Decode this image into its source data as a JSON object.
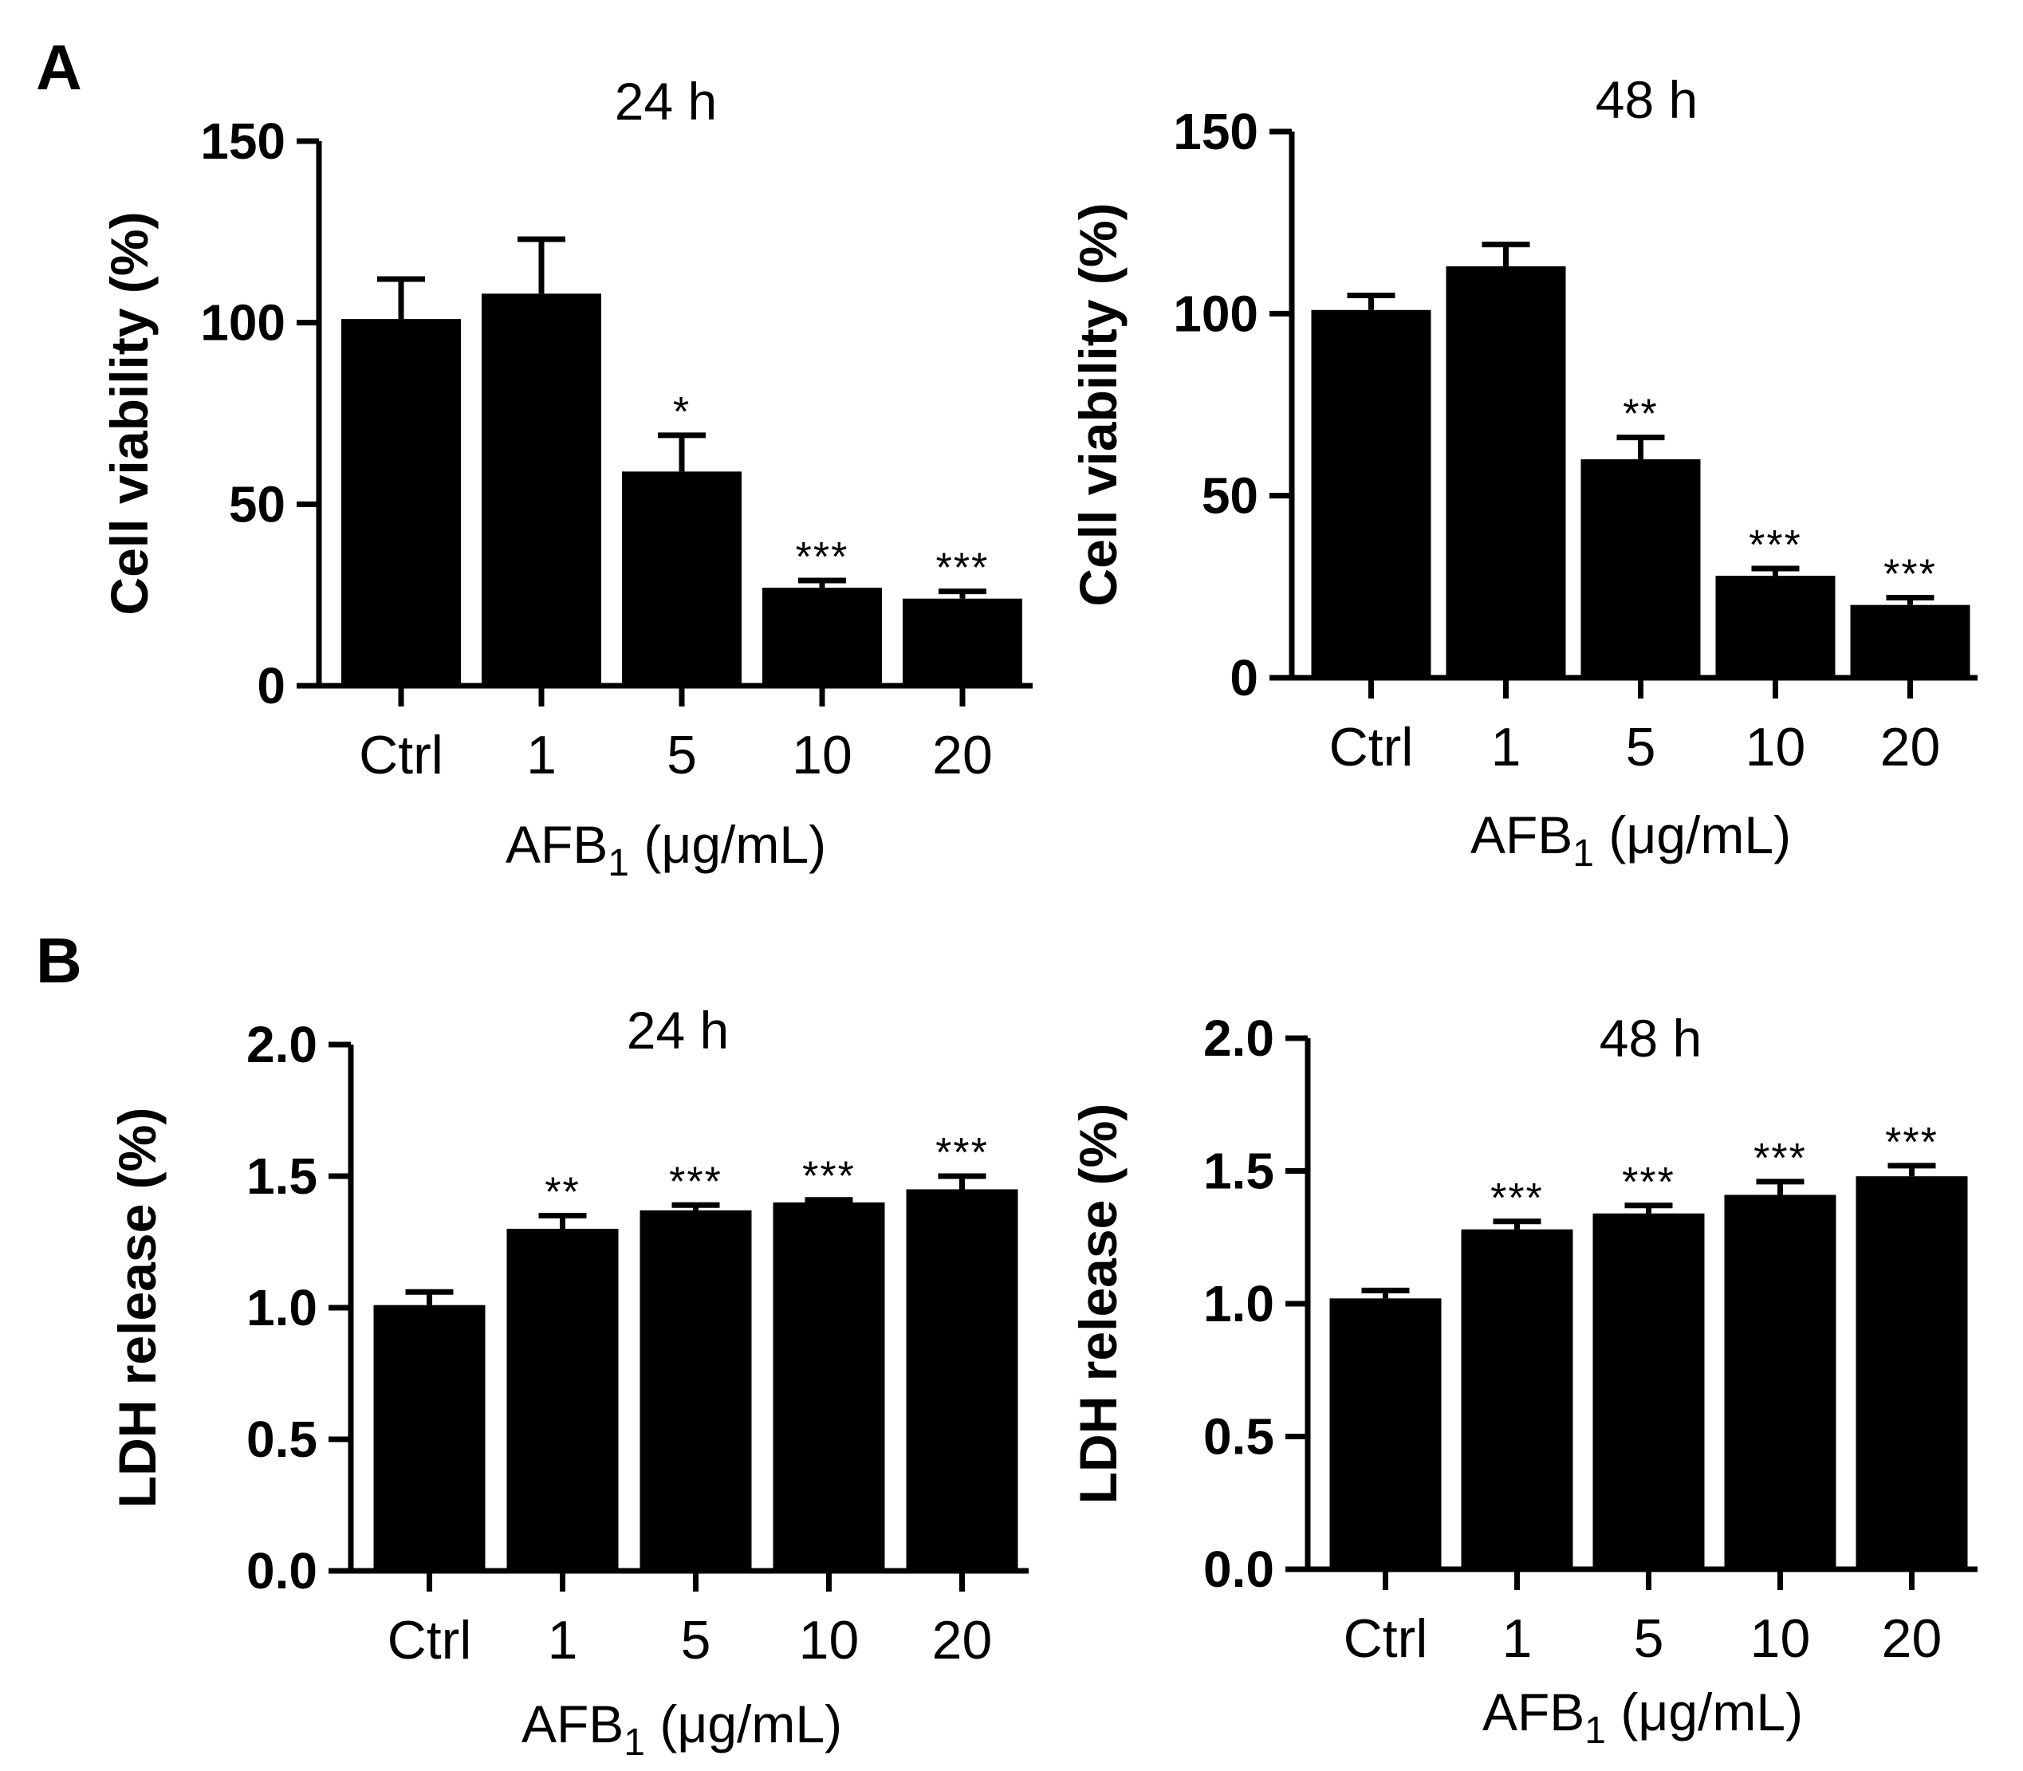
{
  "panels": [
    {
      "letter": "A"
    },
    {
      "letter": "B"
    }
  ],
  "chart_data": [
    {
      "type": "bar",
      "panel": "A",
      "title": "24 h",
      "ylabel": "Cell viability (%)",
      "xlabel": "AFB",
      "xlabel_sub": "1",
      "xlabel_units": "(μg/mL)",
      "categories": [
        "Ctrl",
        "1",
        "5",
        "10",
        "20"
      ],
      "values": [
        101,
        108,
        59,
        27,
        24
      ],
      "errors": [
        11,
        15,
        10,
        2,
        2
      ],
      "significance": [
        "",
        "",
        "*",
        "***",
        "***"
      ],
      "ylim": [
        0,
        150
      ],
      "yticks": [
        "0",
        "50",
        "100",
        "150"
      ],
      "ytick_values": [
        0,
        50,
        100,
        150
      ],
      "bar_color": "#000000"
    },
    {
      "type": "bar",
      "panel": "A",
      "title": "48 h",
      "ylabel": "Cell viability (%)",
      "xlabel": "AFB",
      "xlabel_sub": "1",
      "xlabel_units": "(μg/mL)",
      "categories": [
        "Ctrl",
        "1",
        "5",
        "10",
        "20"
      ],
      "values": [
        101,
        113,
        60,
        28,
        20
      ],
      "errors": [
        4,
        6,
        6,
        2,
        2
      ],
      "significance": [
        "",
        "",
        "**",
        "***",
        "***"
      ],
      "ylim": [
        0,
        150
      ],
      "yticks": [
        "0",
        "50",
        "100",
        "150"
      ],
      "ytick_values": [
        0,
        50,
        100,
        150
      ],
      "bar_color": "#000000"
    },
    {
      "type": "bar",
      "panel": "B",
      "title": "24 h",
      "ylabel": "LDH release (%)",
      "xlabel": "AFB",
      "xlabel_sub": "1",
      "xlabel_units": "(μg/mL)",
      "categories": [
        "Ctrl",
        "1",
        "5",
        "10",
        "20"
      ],
      "values": [
        1.01,
        1.3,
        1.37,
        1.4,
        1.45
      ],
      "errors": [
        0.05,
        0.05,
        0.02,
        0.01,
        0.05
      ],
      "significance": [
        "",
        "**",
        "***",
        "***",
        "***"
      ],
      "ylim": [
        0,
        2.0
      ],
      "yticks": [
        "0.0",
        "0.5",
        "1.0",
        "1.5",
        "2.0"
      ],
      "ytick_values": [
        0,
        0.5,
        1.0,
        1.5,
        2.0
      ],
      "bar_color": "#000000"
    },
    {
      "type": "bar",
      "panel": "B",
      "title": "48 h",
      "ylabel": "LDH release (%)",
      "xlabel": "AFB",
      "xlabel_sub": "1",
      "xlabel_units": "(μg/mL)",
      "categories": [
        "Ctrl",
        "1",
        "5",
        "10",
        "20"
      ],
      "values": [
        1.02,
        1.28,
        1.34,
        1.41,
        1.48
      ],
      "errors": [
        0.03,
        0.03,
        0.03,
        0.05,
        0.04
      ],
      "significance": [
        "",
        "***",
        "***",
        "***",
        "***"
      ],
      "ylim": [
        0,
        2.0
      ],
      "yticks": [
        "0.0",
        "0.5",
        "1.0",
        "1.5",
        "2.0"
      ],
      "ytick_values": [
        0,
        0.5,
        1.0,
        1.5,
        2.0
      ],
      "bar_color": "#000000"
    }
  ]
}
